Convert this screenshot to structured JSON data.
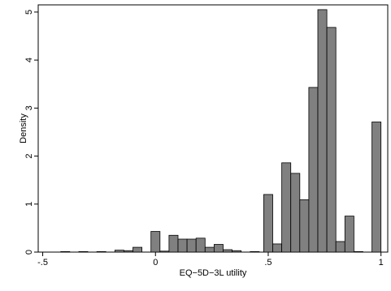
{
  "chart_data": {
    "type": "bar",
    "xlabel": "EQ−5D−3L utility",
    "ylabel": "Density",
    "xlim": [
      -0.52,
      1.03
    ],
    "ylim": [
      0,
      5.15
    ],
    "xticks": [
      -0.5,
      0,
      0.5,
      1
    ],
    "xtick_labels": [
      "-.5",
      "0",
      ".5",
      "1"
    ],
    "yticks": [
      0,
      1,
      2,
      3,
      4,
      5
    ],
    "ytick_labels": [
      "0",
      "1",
      "2",
      "3",
      "4",
      "5"
    ],
    "grid": false,
    "bin_width": 0.04,
    "bins": [
      {
        "start": -0.42,
        "value": 0.01
      },
      {
        "start": -0.34,
        "value": 0.01
      },
      {
        "start": -0.26,
        "value": 0.01
      },
      {
        "start": -0.18,
        "value": 0.04
      },
      {
        "start": -0.14,
        "value": 0.03
      },
      {
        "start": -0.1,
        "value": 0.1
      },
      {
        "start": -0.02,
        "value": 0.43
      },
      {
        "start": 0.02,
        "value": 0.02
      },
      {
        "start": 0.06,
        "value": 0.35
      },
      {
        "start": 0.1,
        "value": 0.27
      },
      {
        "start": 0.14,
        "value": 0.27
      },
      {
        "start": 0.18,
        "value": 0.29
      },
      {
        "start": 0.22,
        "value": 0.1
      },
      {
        "start": 0.26,
        "value": 0.16
      },
      {
        "start": 0.3,
        "value": 0.05
      },
      {
        "start": 0.34,
        "value": 0.03
      },
      {
        "start": 0.42,
        "value": 0.01
      },
      {
        "start": 0.48,
        "value": 1.2
      },
      {
        "start": 0.52,
        "value": 0.17
      },
      {
        "start": 0.56,
        "value": 1.86
      },
      {
        "start": 0.6,
        "value": 1.64
      },
      {
        "start": 0.64,
        "value": 1.09
      },
      {
        "start": 0.68,
        "value": 3.43
      },
      {
        "start": 0.72,
        "value": 5.05
      },
      {
        "start": 0.76,
        "value": 4.68
      },
      {
        "start": 0.8,
        "value": 0.22
      },
      {
        "start": 0.84,
        "value": 0.75
      },
      {
        "start": 0.88,
        "value": 0.01
      },
      {
        "start": 0.96,
        "value": 2.71
      }
    ],
    "colors": {
      "bar_fill": "#808080",
      "bar_stroke": "#000000",
      "frame": "#000000"
    }
  }
}
